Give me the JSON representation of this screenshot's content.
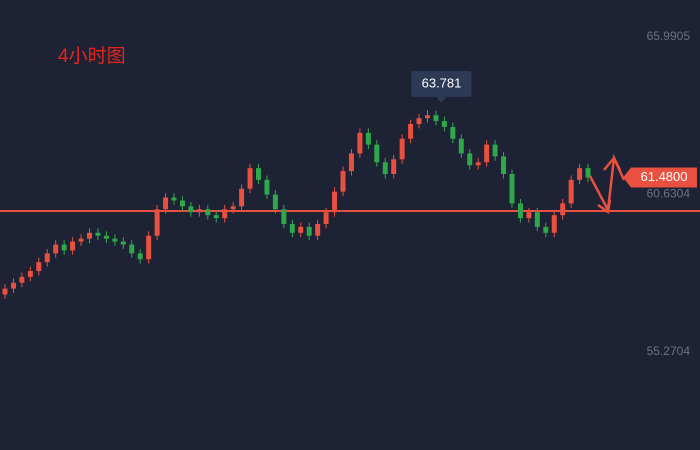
{
  "chart_data": {
    "type": "candlestick",
    "title": "4小时图",
    "up_color": "#e8503f",
    "down_color": "#2ea84a",
    "ylim": [
      52.21,
      67.52
    ],
    "yticks": [
      55.2704,
      60.6304,
      65.9905
    ],
    "support_line": 60.34,
    "last_price": {
      "value": 61.48,
      "label": "61.4800"
    },
    "candles": [
      [
        57.5,
        57.85,
        57.35,
        57.7
      ],
      [
        57.7,
        58.05,
        57.55,
        57.9
      ],
      [
        57.9,
        58.25,
        57.75,
        58.1
      ],
      [
        58.1,
        58.45,
        57.95,
        58.3
      ],
      [
        58.3,
        58.75,
        58.15,
        58.6
      ],
      [
        58.6,
        59.05,
        58.45,
        58.9
      ],
      [
        58.9,
        59.35,
        58.75,
        59.2
      ],
      [
        59.2,
        59.35,
        58.85,
        59.0
      ],
      [
        59.0,
        59.45,
        58.85,
        59.3
      ],
      [
        59.3,
        59.55,
        59.15,
        59.4
      ],
      [
        59.4,
        59.75,
        59.25,
        59.6
      ],
      [
        59.6,
        59.75,
        59.35,
        59.5
      ],
      [
        59.5,
        59.65,
        59.25,
        59.4
      ],
      [
        59.4,
        59.55,
        59.15,
        59.3
      ],
      [
        59.3,
        59.45,
        59.05,
        59.2
      ],
      [
        59.2,
        59.35,
        58.75,
        58.9
      ],
      [
        58.9,
        59.05,
        58.55,
        58.7
      ],
      [
        58.7,
        59.65,
        58.55,
        59.5
      ],
      [
        59.5,
        60.55,
        59.35,
        60.4
      ],
      [
        60.4,
        60.95,
        60.25,
        60.8
      ],
      [
        60.8,
        60.95,
        60.55,
        60.7
      ],
      [
        60.7,
        60.85,
        60.35,
        60.5
      ],
      [
        60.5,
        60.65,
        60.15,
        60.3
      ],
      [
        60.3,
        60.55,
        60.15,
        60.4
      ],
      [
        60.4,
        60.55,
        60.05,
        60.2
      ],
      [
        60.2,
        60.35,
        59.95,
        60.1
      ],
      [
        60.1,
        60.55,
        59.95,
        60.4
      ],
      [
        60.4,
        60.65,
        60.25,
        60.5
      ],
      [
        60.5,
        61.25,
        60.35,
        61.1
      ],
      [
        61.1,
        61.95,
        60.95,
        61.8
      ],
      [
        61.8,
        61.95,
        61.25,
        61.4
      ],
      [
        61.4,
        61.55,
        60.75,
        60.9
      ],
      [
        60.9,
        61.05,
        60.25,
        60.4
      ],
      [
        60.4,
        60.55,
        59.75,
        59.9
      ],
      [
        59.9,
        60.05,
        59.45,
        59.6
      ],
      [
        59.6,
        59.95,
        59.45,
        59.8
      ],
      [
        59.8,
        59.95,
        59.35,
        59.5
      ],
      [
        59.5,
        60.05,
        59.35,
        59.9
      ],
      [
        59.9,
        60.45,
        59.75,
        60.3
      ],
      [
        60.3,
        61.15,
        60.15,
        61.0
      ],
      [
        61.0,
        61.85,
        60.85,
        61.7
      ],
      [
        61.7,
        62.45,
        61.55,
        62.3
      ],
      [
        62.3,
        63.15,
        62.15,
        63.0
      ],
      [
        63.0,
        63.15,
        62.45,
        62.6
      ],
      [
        62.6,
        62.75,
        61.85,
        62.0
      ],
      [
        62.0,
        62.15,
        61.45,
        61.6
      ],
      [
        61.6,
        62.25,
        61.45,
        62.1
      ],
      [
        62.1,
        62.95,
        61.95,
        62.8
      ],
      [
        62.8,
        63.45,
        62.65,
        63.3
      ],
      [
        63.3,
        63.65,
        63.15,
        63.5
      ],
      [
        63.5,
        63.781,
        63.35,
        63.6
      ],
      [
        63.6,
        63.75,
        63.25,
        63.4
      ],
      [
        63.4,
        63.55,
        63.05,
        63.2
      ],
      [
        63.2,
        63.35,
        62.65,
        62.8
      ],
      [
        62.8,
        62.95,
        62.15,
        62.3
      ],
      [
        62.3,
        62.45,
        61.75,
        61.9
      ],
      [
        61.9,
        62.15,
        61.75,
        62.0
      ],
      [
        62.0,
        62.75,
        61.85,
        62.6
      ],
      [
        62.6,
        62.75,
        62.05,
        62.2
      ],
      [
        62.2,
        62.35,
        61.45,
        61.6
      ],
      [
        61.6,
        61.75,
        60.45,
        60.6
      ],
      [
        60.6,
        60.75,
        59.95,
        60.1
      ],
      [
        60.1,
        60.45,
        59.95,
        60.3
      ],
      [
        60.3,
        60.45,
        59.65,
        59.8
      ],
      [
        59.8,
        59.95,
        59.45,
        59.6
      ],
      [
        59.6,
        60.35,
        59.45,
        60.2
      ],
      [
        60.2,
        60.75,
        60.05,
        60.6
      ],
      [
        60.6,
        61.55,
        60.45,
        61.4
      ],
      [
        61.4,
        61.95,
        61.25,
        61.8
      ],
      [
        61.8,
        61.95,
        61.33,
        61.48
      ]
    ]
  }
}
